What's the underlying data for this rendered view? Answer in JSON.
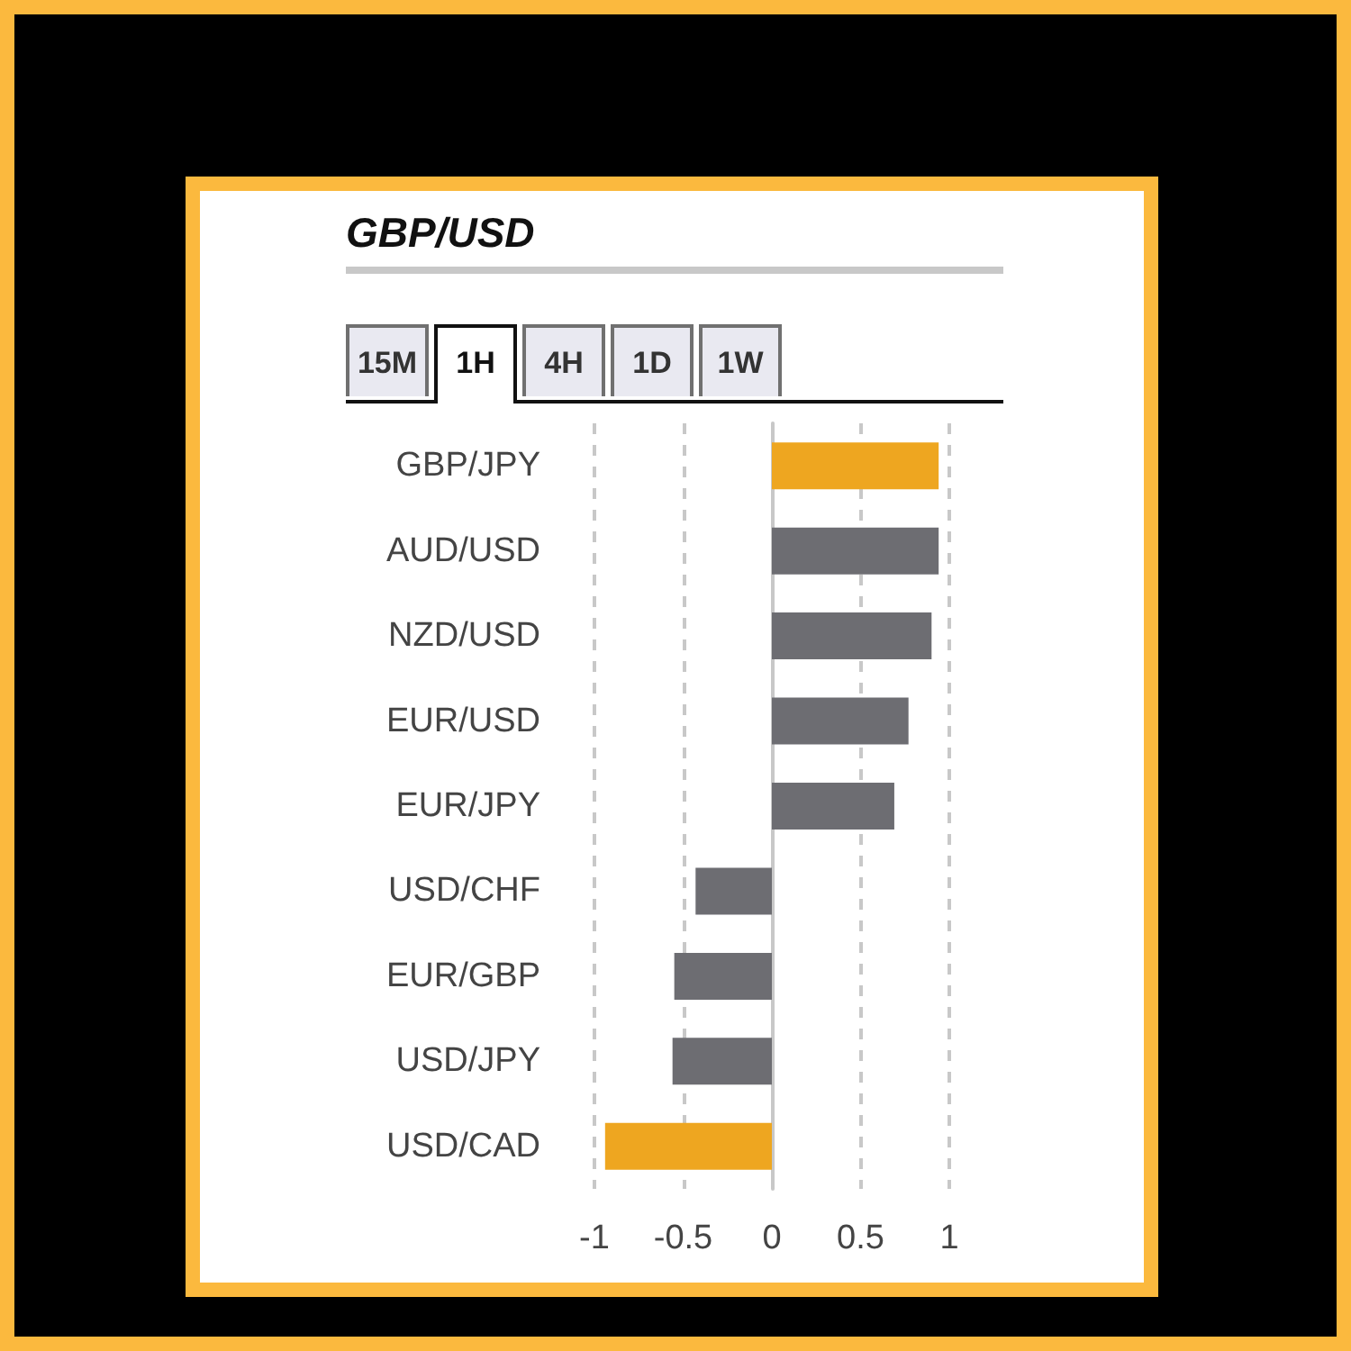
{
  "chart_data": {
    "type": "bar",
    "orientation": "horizontal",
    "title": "GBP/USD",
    "annotations": [
      "15M",
      "1H",
      "4H",
      "1D",
      "1W"
    ],
    "categories": [
      "GBP/JPY",
      "AUD/USD",
      "NZD/USD",
      "EUR/USD",
      "EUR/JPY",
      "USD/CHF",
      "EUR/GBP",
      "USD/JPY",
      "USD/CAD"
    ],
    "values": [
      0.94,
      0.94,
      0.9,
      0.77,
      0.69,
      -0.43,
      -0.55,
      -0.56,
      -0.94
    ],
    "colors": [
      "#eea620",
      "#6d6d72",
      "#6d6d72",
      "#6d6d72",
      "#6d6d72",
      "#6d6d72",
      "#6d6d72",
      "#6d6d72",
      "#eea620"
    ],
    "xlim": [
      -1,
      1
    ],
    "xticks": [
      -1,
      -0.5,
      0,
      0.5,
      1
    ],
    "grid": "x"
  }
}
